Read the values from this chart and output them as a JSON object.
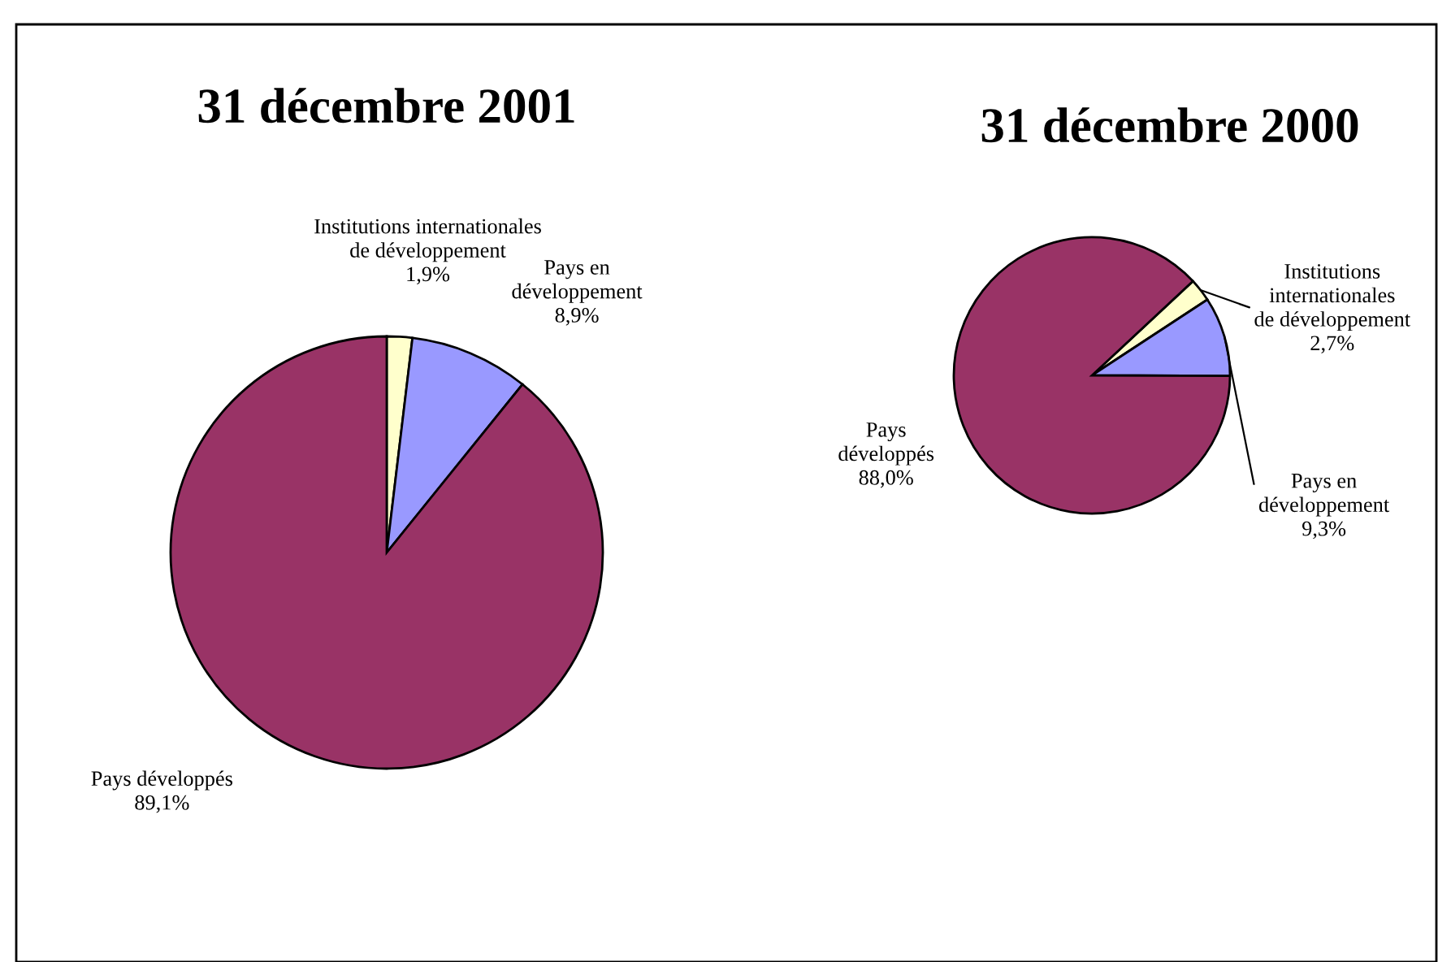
{
  "chart_data": [
    {
      "type": "pie",
      "title": "31 décembre 2001",
      "categories": [
        "Institutions internationales\nde développement",
        "Pays en\ndéveloppement",
        "Pays développés"
      ],
      "values": [
        1.9,
        8.9,
        89.1
      ],
      "value_labels": [
        "1,9%",
        "8,9%",
        "89,1%"
      ],
      "colors": [
        "#ffffcc",
        "#9999ff",
        "#993366"
      ],
      "legend": false
    },
    {
      "type": "pie",
      "title": "31 décembre 2000",
      "categories": [
        "Institutions\ninternationales\nde développement",
        "Pays en\ndéveloppement",
        "Pays\ndéveloppés"
      ],
      "values": [
        2.7,
        9.3,
        88.0
      ],
      "value_labels": [
        "2,7%",
        "9,3%",
        "88,0%"
      ],
      "colors": [
        "#ffffcc",
        "#9999ff",
        "#993366"
      ],
      "legend": false
    }
  ]
}
